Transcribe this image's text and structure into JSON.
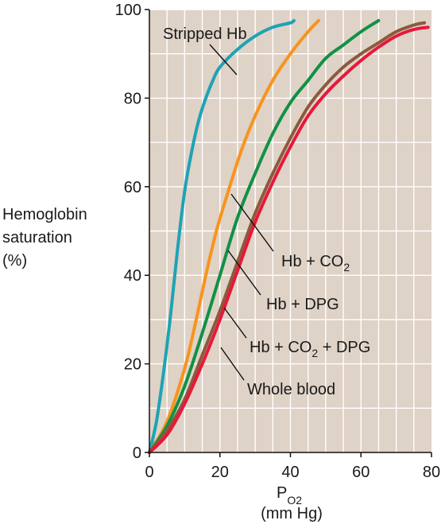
{
  "chart_data": {
    "type": "line",
    "title": "",
    "xlabel": "PO2",
    "xlabel_main": "P",
    "xlabel_sub": "O2",
    "xlabel_units": "(mm Hg)",
    "ylabel": [
      "Hemoglobin",
      "saturation",
      "(%)"
    ],
    "xlim": [
      0,
      80
    ],
    "ylim": [
      0,
      100
    ],
    "xticks": [
      0,
      20,
      40,
      60,
      80
    ],
    "yticks": [
      0,
      20,
      40,
      60,
      80,
      100
    ],
    "grid": true,
    "colors": {
      "plot_background": "#dfd2c6",
      "grid": "#ffffff",
      "axis": "#111111"
    },
    "series": [
      {
        "name": "Stripped Hb",
        "color": "#1ea3b5",
        "x": [
          0,
          2,
          4,
          6,
          8,
          10,
          12,
          14,
          16,
          18,
          20,
          25,
          30,
          35,
          40,
          41
        ],
        "y": [
          0,
          7,
          18,
          31,
          46,
          59,
          68,
          75,
          80,
          84,
          87,
          91,
          94,
          96,
          97,
          97.5
        ]
      },
      {
        "name": "Hb + CO2",
        "color": "#f7941d",
        "x": [
          0,
          5,
          10,
          13,
          16,
          19,
          22,
          26,
          30,
          35,
          40,
          45,
          48
        ],
        "y": [
          0,
          7,
          19,
          29,
          40,
          50,
          58,
          68,
          76,
          84,
          90,
          95,
          97.5
        ]
      },
      {
        "name": "Hb + DPG",
        "color": "#119146",
        "x": [
          0,
          5,
          10,
          15,
          20,
          25,
          30,
          35,
          40,
          45,
          50,
          55,
          60,
          65
        ],
        "y": [
          0,
          6,
          15,
          27,
          40,
          53,
          63,
          72,
          79,
          84,
          89,
          92,
          95,
          97.5
        ]
      },
      {
        "name": "Hb + CO2 + DPG",
        "color": "#8b5a3c",
        "x": [
          0,
          5,
          10,
          15,
          20,
          25,
          30,
          35,
          40,
          45,
          50,
          55,
          60,
          65,
          70,
          75,
          78
        ],
        "y": [
          0,
          5,
          12,
          22,
          32,
          43,
          54,
          63,
          71,
          78,
          83,
          87,
          90,
          92.5,
          95,
          96.5,
          97
        ]
      },
      {
        "name": "Whole blood",
        "color": "#e8173c",
        "x": [
          0,
          5,
          10,
          15,
          20,
          25,
          30,
          35,
          40,
          45,
          50,
          55,
          60,
          65,
          70,
          75,
          79
        ],
        "y": [
          0,
          4,
          11,
          20,
          30,
          41,
          52,
          61,
          69,
          76,
          81,
          85,
          88.5,
          91.5,
          94,
          95.5,
          96
        ]
      }
    ],
    "annotations": [
      {
        "text": "Stripped Hb",
        "series": "Stripped Hb"
      },
      {
        "text": "Hb + CO",
        "sub": "2",
        "series": "Hb + CO2"
      },
      {
        "text": "Hb + DPG",
        "series": "Hb + DPG"
      },
      {
        "text": "Hb + CO",
        "sub": "2",
        "tail": " + DPG",
        "series": "Hb + CO2 + DPG"
      },
      {
        "text": "Whole blood",
        "series": "Whole blood"
      }
    ]
  }
}
